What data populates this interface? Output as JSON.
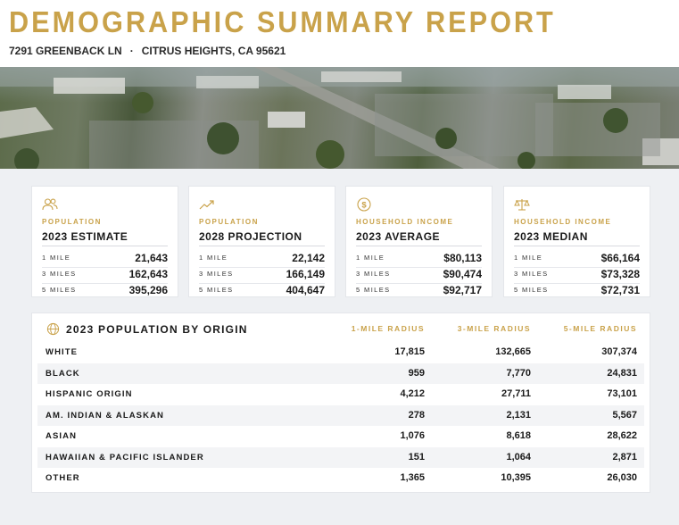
{
  "header": {
    "title": "DEMOGRAPHIC SUMMARY REPORT",
    "street": "7291 GREENBACK LN",
    "separator": "·",
    "city": "CITRUS HEIGHTS, CA 95621"
  },
  "colors": {
    "accent": "#c9a24a",
    "text": "#1a1a1a",
    "background": "#eef0f3"
  },
  "cards": [
    {
      "icon": "people-icon",
      "label": "POPULATION",
      "subtitle": "2023 ESTIMATE",
      "rows": [
        {
          "radius": "1 MILE",
          "value": "21,643"
        },
        {
          "radius": "3 MILES",
          "value": "162,643"
        },
        {
          "radius": "5 MILES",
          "value": "395,296"
        }
      ]
    },
    {
      "icon": "trend-up-icon",
      "label": "POPULATION",
      "subtitle": "2028 PROJECTION",
      "rows": [
        {
          "radius": "1 MILE",
          "value": "22,142"
        },
        {
          "radius": "3 MILES",
          "value": "166,149"
        },
        {
          "radius": "5 MILES",
          "value": "404,647"
        }
      ]
    },
    {
      "icon": "dollar-icon",
      "label": "HOUSEHOLD INCOME",
      "subtitle": "2023 AVERAGE",
      "rows": [
        {
          "radius": "1 MILE",
          "value": "$80,113"
        },
        {
          "radius": "3 MILES",
          "value": "$90,474"
        },
        {
          "radius": "5 MILES",
          "value": "$92,717"
        }
      ]
    },
    {
      "icon": "scale-icon",
      "label": "HOUSEHOLD INCOME",
      "subtitle": "2023 MEDIAN",
      "rows": [
        {
          "radius": "1 MILE",
          "value": "$66,164"
        },
        {
          "radius": "3 MILES",
          "value": "$73,328"
        },
        {
          "radius": "5 MILES",
          "value": "$72,731"
        }
      ]
    }
  ],
  "origin_table": {
    "icon": "globe-icon",
    "title": "2023 POPULATION BY ORIGIN",
    "columns": [
      "1-MILE RADIUS",
      "3-MILE RADIUS",
      "5-MILE RADIUS"
    ],
    "rows": [
      {
        "name": "WHITE",
        "values": [
          "17,815",
          "132,665",
          "307,374"
        ]
      },
      {
        "name": "BLACK",
        "values": [
          "959",
          "7,770",
          "24,831"
        ]
      },
      {
        "name": "HISPANIC ORIGIN",
        "values": [
          "4,212",
          "27,711",
          "73,101"
        ]
      },
      {
        "name": "AM. INDIAN & ALASKAN",
        "values": [
          "278",
          "2,131",
          "5,567"
        ]
      },
      {
        "name": "ASIAN",
        "values": [
          "1,076",
          "8,618",
          "28,622"
        ]
      },
      {
        "name": "HAWAIIAN & PACIFIC ISLANDER",
        "values": [
          "151",
          "1,064",
          "2,871"
        ]
      },
      {
        "name": "OTHER",
        "values": [
          "1,365",
          "10,395",
          "26,030"
        ]
      }
    ]
  }
}
